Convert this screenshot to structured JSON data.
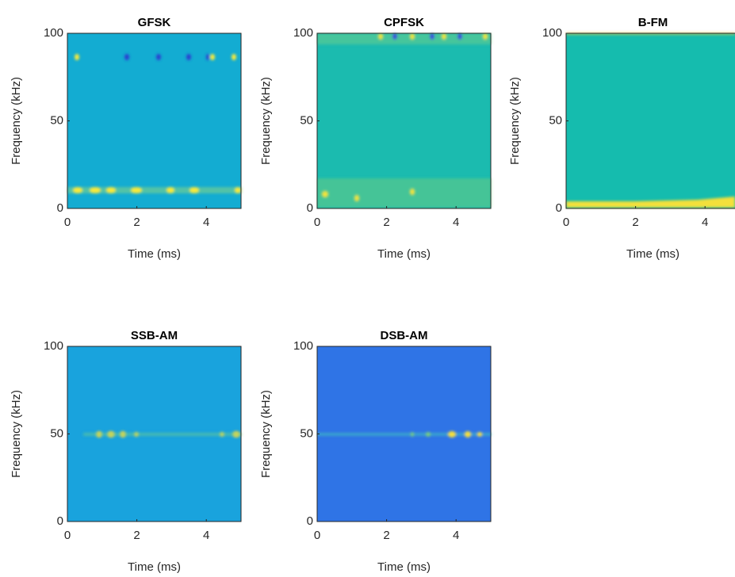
{
  "chart_data": [
    {
      "type": "spectrogram",
      "title": "GFSK",
      "xlabel": "Time (ms)",
      "ylabel": "Frequency (kHz)",
      "xlim": [
        0,
        5
      ],
      "ylim": [
        0,
        100
      ],
      "xticks": [
        0,
        2,
        4
      ],
      "yticks": [
        0,
        50,
        100
      ],
      "color": "#13acd2"
    },
    {
      "type": "spectrogram",
      "title": "CPFSK",
      "xlabel": "Time (ms)",
      "ylabel": "Frequency (kHz)",
      "xlim": [
        0,
        5
      ],
      "ylim": [
        0,
        100
      ],
      "xticks": [
        0,
        2,
        4
      ],
      "yticks": [
        0,
        50,
        100
      ],
      "color": "#1bbbaf"
    },
    {
      "type": "spectrogram",
      "title": "B-FM",
      "xlabel": "Time (ms)",
      "ylabel": "Frequency (kHz)",
      "xlim": [
        0,
        5
      ],
      "ylim": [
        0,
        100
      ],
      "xticks": [
        0,
        2,
        4
      ],
      "yticks": [
        0,
        50,
        100
      ],
      "color": "#15bcae"
    },
    {
      "type": "spectrogram",
      "title": "SSB-AM",
      "xlabel": "Time (ms)",
      "ylabel": "Frequency (kHz)",
      "xlim": [
        0,
        5
      ],
      "ylim": [
        0,
        100
      ],
      "xticks": [
        0,
        2,
        4
      ],
      "yticks": [
        0,
        50,
        100
      ],
      "color": "#19a3dd"
    },
    {
      "type": "spectrogram",
      "title": "DSB-AM",
      "xlabel": "Time (ms)",
      "ylabel": "Frequency (kHz)",
      "xlim": [
        0,
        5
      ],
      "ylim": [
        0,
        100
      ],
      "xticks": [
        0,
        2,
        4
      ],
      "yticks": [
        0,
        50,
        100
      ],
      "color": "#2f74e6"
    }
  ]
}
